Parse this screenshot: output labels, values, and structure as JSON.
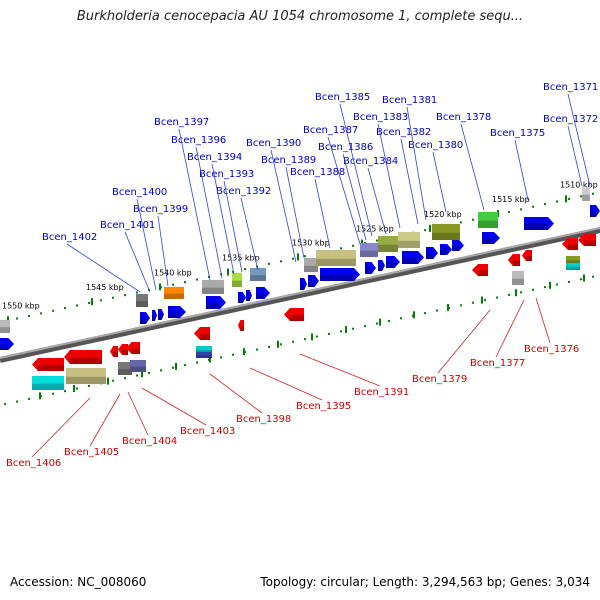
{
  "title": "Burkholderia cenocepacia AU 1054 chromosome 1, complete sequ...",
  "footer": {
    "accession": "Accession: NC_008060",
    "topology": "Topology: circular; Length: 3,294,563 bp; Genes: 3,034"
  },
  "colors": {
    "forward_label": "#0000cc",
    "reverse_label": "#cc0000",
    "forward_gene": "#0000ee",
    "reverse_gene": "#ee0000",
    "axis": "#808080",
    "tick": "#008000"
  },
  "kbp_ticks": [
    "1550 kbp",
    "1545 kbp",
    "1540 kbp",
    "1535 kbp",
    "1530 kbp",
    "1525 kbp",
    "1520 kbp",
    "1515 kbp",
    "1510 kbp"
  ],
  "forward_genes": [
    "Bcen_1371",
    "Bcen_1372",
    "Bcen_1375",
    "Bcen_1378",
    "Bcen_1380",
    "Bcen_1381",
    "Bcen_1382",
    "Bcen_1383",
    "Bcen_1384",
    "Bcen_1385",
    "Bcen_1386",
    "Bcen_1387",
    "Bcen_1388",
    "Bcen_1389",
    "Bcen_1390",
    "Bcen_1392",
    "Bcen_1393",
    "Bcen_1394",
    "Bcen_1396",
    "Bcen_1397",
    "Bcen_1399",
    "Bcen_1400",
    "Bcen_1401",
    "Bcen_1402"
  ],
  "reverse_genes": [
    "Bcen_1376",
    "Bcen_1377",
    "Bcen_1379",
    "Bcen_1391",
    "Bcen_1395",
    "Bcen_1398",
    "Bcen_1403",
    "Bcen_1404",
    "Bcen_1405",
    "Bcen_1406"
  ]
}
